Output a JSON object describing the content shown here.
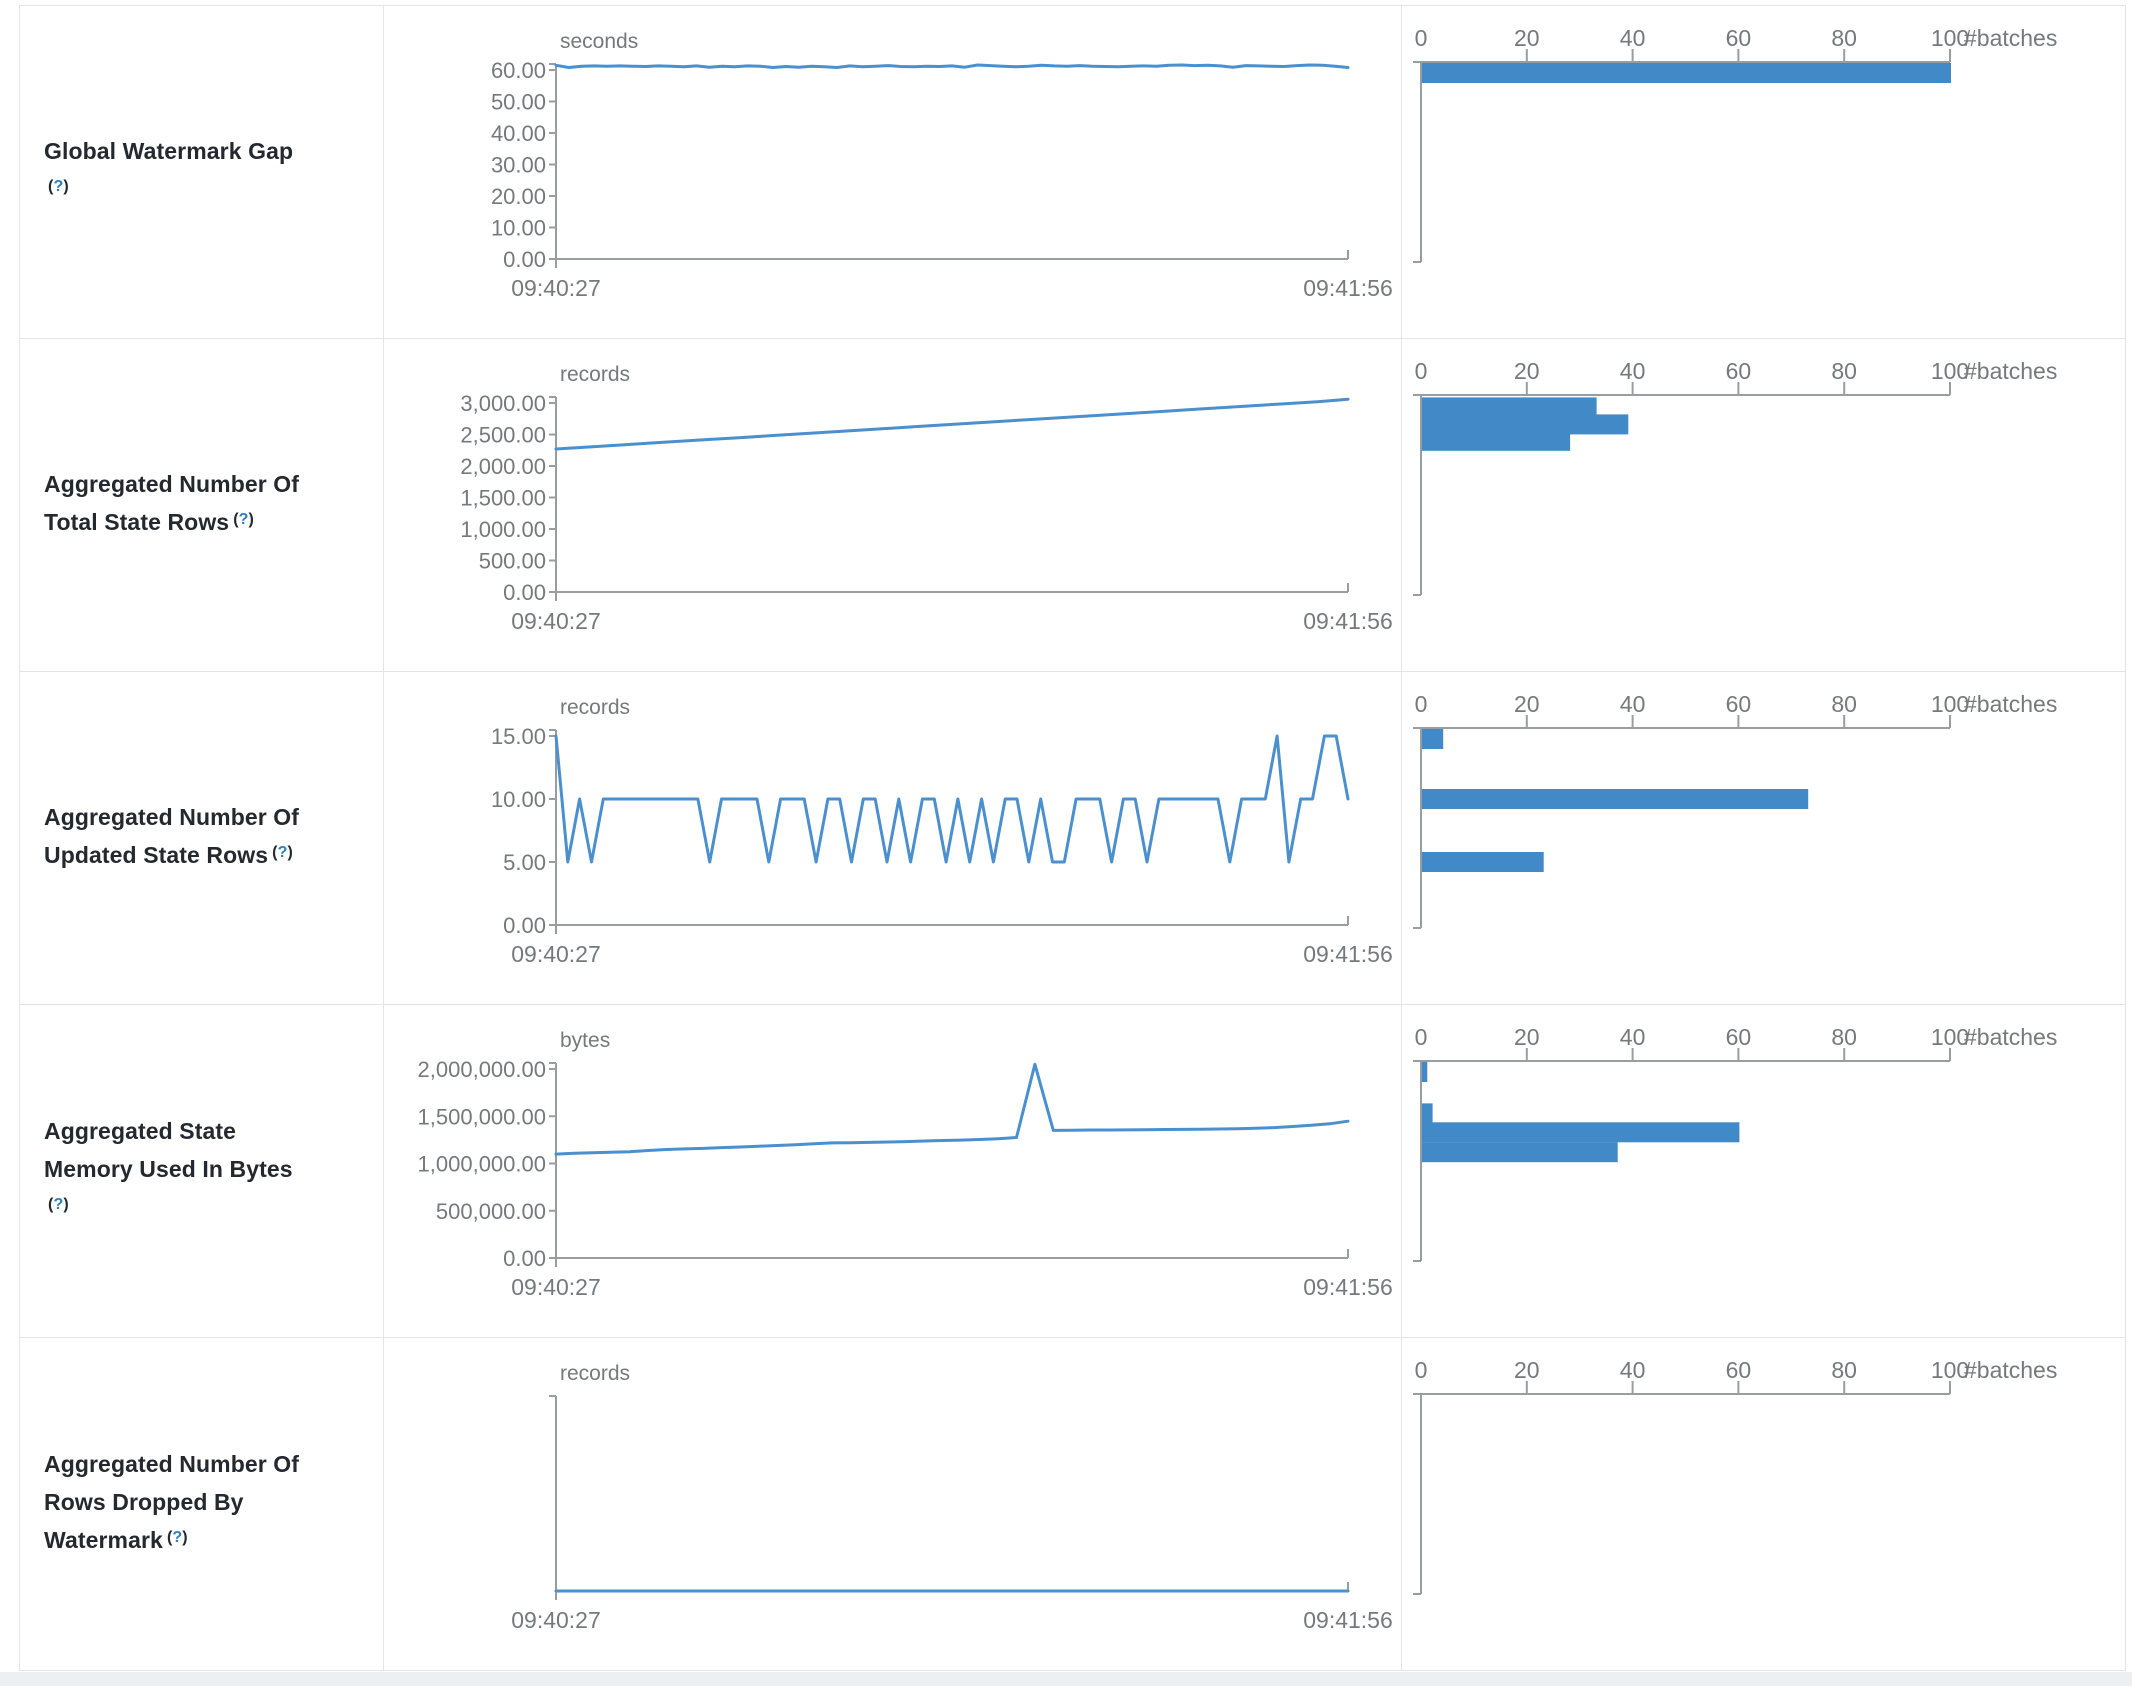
{
  "colors": {
    "line": "#4a8fce",
    "bar": "#4189c7",
    "axis": "#9a9da0",
    "axis_text": "#76797c",
    "label_text": "#24292f",
    "help_link": "#2b7fc0",
    "border": "#e2e5e8"
  },
  "x_axis": {
    "start_label": "09:40:27",
    "end_label": "09:41:56"
  },
  "hist_axis": {
    "ticks": [
      {
        "v": 0,
        "label": "0"
      },
      {
        "v": 20,
        "label": "20"
      },
      {
        "v": 40,
        "label": "40"
      },
      {
        "v": 60,
        "label": "60"
      },
      {
        "v": 80,
        "label": "80"
      },
      {
        "v": 100,
        "label": "100"
      }
    ],
    "max": 100,
    "unit_label": "#batches"
  },
  "chart_data": [
    {
      "type": "line+bar-histogram",
      "name": "global-watermark-gap",
      "label_lines": [
        "Global Watermark Gap"
      ],
      "help_label": "(?)",
      "help_own_line": true,
      "unit": "seconds",
      "y_top_value": 60,
      "y_ticks": [
        {
          "v": 60,
          "label": "60.00"
        },
        {
          "v": 50,
          "label": "50.00"
        },
        {
          "v": 40,
          "label": "40.00"
        },
        {
          "v": 30,
          "label": "30.00"
        },
        {
          "v": 20,
          "label": "20.00"
        },
        {
          "v": 10,
          "label": "10.00"
        },
        {
          "v": 0,
          "label": "0.00"
        }
      ],
      "series": [
        61.5,
        60.8,
        61.2,
        61.3,
        61.2,
        61.3,
        61.2,
        61.1,
        61.3,
        61.2,
        61.0,
        61.3,
        60.9,
        61.2,
        61.0,
        61.3,
        61.2,
        60.8,
        61.1,
        60.9,
        61.2,
        61.0,
        60.8,
        61.3,
        61.0,
        61.2,
        61.4,
        61.1,
        61.0,
        61.2,
        61.1,
        61.3,
        60.9,
        61.6,
        61.4,
        61.2,
        61.0,
        61.2,
        61.5,
        61.3,
        61.2,
        61.4,
        61.2,
        61.1,
        61.0,
        61.2,
        61.3,
        61.2,
        61.5,
        61.6,
        61.4,
        61.5,
        61.3,
        60.9,
        61.4,
        61.3,
        61.2,
        61.1,
        61.4,
        61.6,
        61.5,
        61.2,
        60.8
      ],
      "histogram_bins": [
        {
          "center_v": 61,
          "count": 100
        }
      ]
    },
    {
      "type": "line+bar-histogram",
      "name": "aggregated-total-state-rows",
      "label_lines": [
        "Aggregated Number Of",
        "Total State Rows"
      ],
      "help_label": "(?)",
      "help_own_line": false,
      "unit": "records",
      "y_top_value": 3000,
      "y_ticks": [
        {
          "v": 3000,
          "label": "3,000.00"
        },
        {
          "v": 2500,
          "label": "2,500.00"
        },
        {
          "v": 2000,
          "label": "2,000.00"
        },
        {
          "v": 1500,
          "label": "1,500.00"
        },
        {
          "v": 1000,
          "label": "1,000.00"
        },
        {
          "v": 500,
          "label": "500.00"
        },
        {
          "v": 0,
          "label": "0.00"
        }
      ],
      "series": [
        2270,
        2300,
        2330,
        2360,
        2390,
        2420,
        2450,
        2480,
        2510,
        2540,
        2570,
        2600,
        2630,
        2660,
        2690,
        2720,
        2750,
        2780,
        2810,
        2840,
        2870,
        2900,
        2930,
        2960,
        2990,
        3020,
        3060
      ],
      "histogram_bins": [
        {
          "center_v": 2930,
          "count": 33
        },
        {
          "center_v": 2660,
          "count": 39
        },
        {
          "center_v": 2400,
          "count": 28
        }
      ]
    },
    {
      "type": "line+bar-histogram",
      "name": "aggregated-updated-state-rows",
      "label_lines": [
        "Aggregated Number Of",
        "Updated State Rows"
      ],
      "help_label": "(?)",
      "help_own_line": false,
      "unit": "records",
      "y_top_value": 15,
      "y_ticks": [
        {
          "v": 15,
          "label": "15.00"
        },
        {
          "v": 10,
          "label": "10.00"
        },
        {
          "v": 5,
          "label": "5.00"
        },
        {
          "v": 0,
          "label": "0.00"
        }
      ],
      "series": [
        15,
        5,
        10,
        5,
        10,
        10,
        10,
        10,
        10,
        10,
        10,
        10,
        10,
        5,
        10,
        10,
        10,
        10,
        5,
        10,
        10,
        10,
        5,
        10,
        10,
        5,
        10,
        10,
        5,
        10,
        5,
        10,
        10,
        5,
        10,
        5,
        10,
        5,
        10,
        10,
        5,
        10,
        5,
        5,
        10,
        10,
        10,
        5,
        10,
        10,
        5,
        10,
        10,
        10,
        10,
        10,
        10,
        5,
        10,
        10,
        10,
        15,
        5,
        10,
        10,
        15,
        15,
        10
      ],
      "histogram_bins": [
        {
          "center_v": 15,
          "count": 4
        },
        {
          "center_v": 10,
          "count": 73
        },
        {
          "center_v": 5,
          "count": 23
        }
      ]
    },
    {
      "type": "line+bar-histogram",
      "name": "aggregated-state-memory-used",
      "label_lines": [
        "Aggregated State",
        "Memory Used In Bytes"
      ],
      "help_label": "(?)",
      "help_own_line": true,
      "unit": "bytes",
      "y_top_value": 2000000,
      "y_ticks": [
        {
          "v": 2000000,
          "label": "2,000,000.00"
        },
        {
          "v": 1500000,
          "label": "1,500,000.00"
        },
        {
          "v": 1000000,
          "label": "1,000,000.00"
        },
        {
          "v": 500000,
          "label": "500,000.00"
        },
        {
          "v": 0,
          "label": "0.00"
        }
      ],
      "series": [
        1100000,
        1108000,
        1113000,
        1118000,
        1125000,
        1138000,
        1148000,
        1155000,
        1160000,
        1168000,
        1175000,
        1183000,
        1190000,
        1198000,
        1210000,
        1218000,
        1220000,
        1223000,
        1227000,
        1232000,
        1238000,
        1243000,
        1248000,
        1254000,
        1262000,
        1275000,
        2050000,
        1350000,
        1352000,
        1354000,
        1355000,
        1356000,
        1358000,
        1360000,
        1361000,
        1363000,
        1365000,
        1368000,
        1372000,
        1380000,
        1392000,
        1405000,
        1420000,
        1448000
      ],
      "histogram_bins": [
        {
          "center_v": 2000000,
          "count": 1
        },
        {
          "center_v": 1530000,
          "count": 2
        },
        {
          "center_v": 1330000,
          "count": 60
        },
        {
          "center_v": 1120000,
          "count": 37
        }
      ]
    },
    {
      "type": "line+bar-histogram",
      "name": "aggregated-rows-dropped-by-watermark",
      "label_lines": [
        "Aggregated Number Of",
        "Rows Dropped By",
        "Watermark"
      ],
      "help_label": "(?)",
      "help_own_line": false,
      "unit": "records",
      "y_top_value": 1,
      "y_ticks": [],
      "series": [
        0,
        0,
        0,
        0,
        0,
        0,
        0,
        0,
        0,
        0
      ],
      "histogram_bins": []
    }
  ]
}
